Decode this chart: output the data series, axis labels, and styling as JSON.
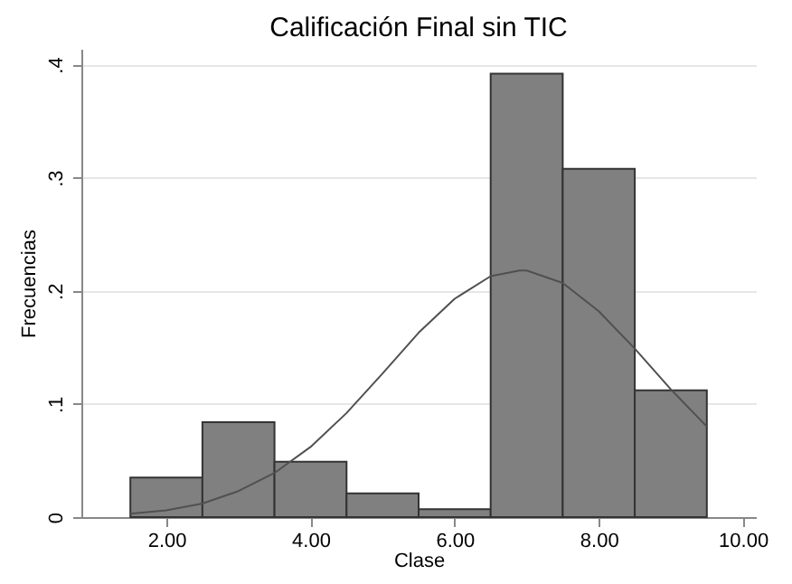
{
  "chart_data": {
    "type": "histogram",
    "title": "Calificación Final sin TIC",
    "xlabel": "Clase",
    "ylabel": "Frecuencias",
    "series": [
      {
        "type": "histogram",
        "color": "#808080",
        "bins": [
          1.5,
          2.5,
          3.5,
          4.5,
          5.5,
          6.5,
          7.5,
          8.5,
          9.5
        ],
        "values": [
          0.035,
          0.084,
          0.049,
          0.021,
          0.007,
          0.392,
          0.308,
          0.112
        ]
      },
      {
        "type": "line",
        "color": "#505050",
        "x": [
          1.5,
          2.0,
          2.5,
          3.0,
          3.5,
          4.0,
          4.5,
          5.0,
          5.5,
          6.0,
          6.5,
          6.9,
          7.0,
          7.5,
          8.0,
          8.5,
          9.0,
          9.5
        ],
        "values": [
          0.003,
          0.006,
          0.012,
          0.023,
          0.039,
          0.062,
          0.092,
          0.127,
          0.163,
          0.193,
          0.213,
          0.218,
          0.218,
          0.207,
          0.182,
          0.149,
          0.113,
          0.08
        ]
      }
    ],
    "xlim": [
      0.82,
      10.18
    ],
    "xticks": [
      {
        "value": 2,
        "label": "2.00"
      },
      {
        "value": 4,
        "label": "4.00"
      },
      {
        "value": 6,
        "label": "6.00"
      },
      {
        "value": 8,
        "label": "8.00"
      },
      {
        "value": 10,
        "label": "10.00"
      }
    ],
    "ylim": [
      0,
      0.414
    ],
    "yticks": [
      {
        "value": 0,
        "label": "0"
      },
      {
        "value": 0.1,
        "label": ".1"
      },
      {
        "value": 0.2,
        "label": ".2"
      },
      {
        "value": 0.3,
        "label": ".3"
      },
      {
        "value": 0.4,
        "label": ".4"
      }
    ],
    "grid": "y",
    "marker": "none",
    "line_style": "solid"
  }
}
